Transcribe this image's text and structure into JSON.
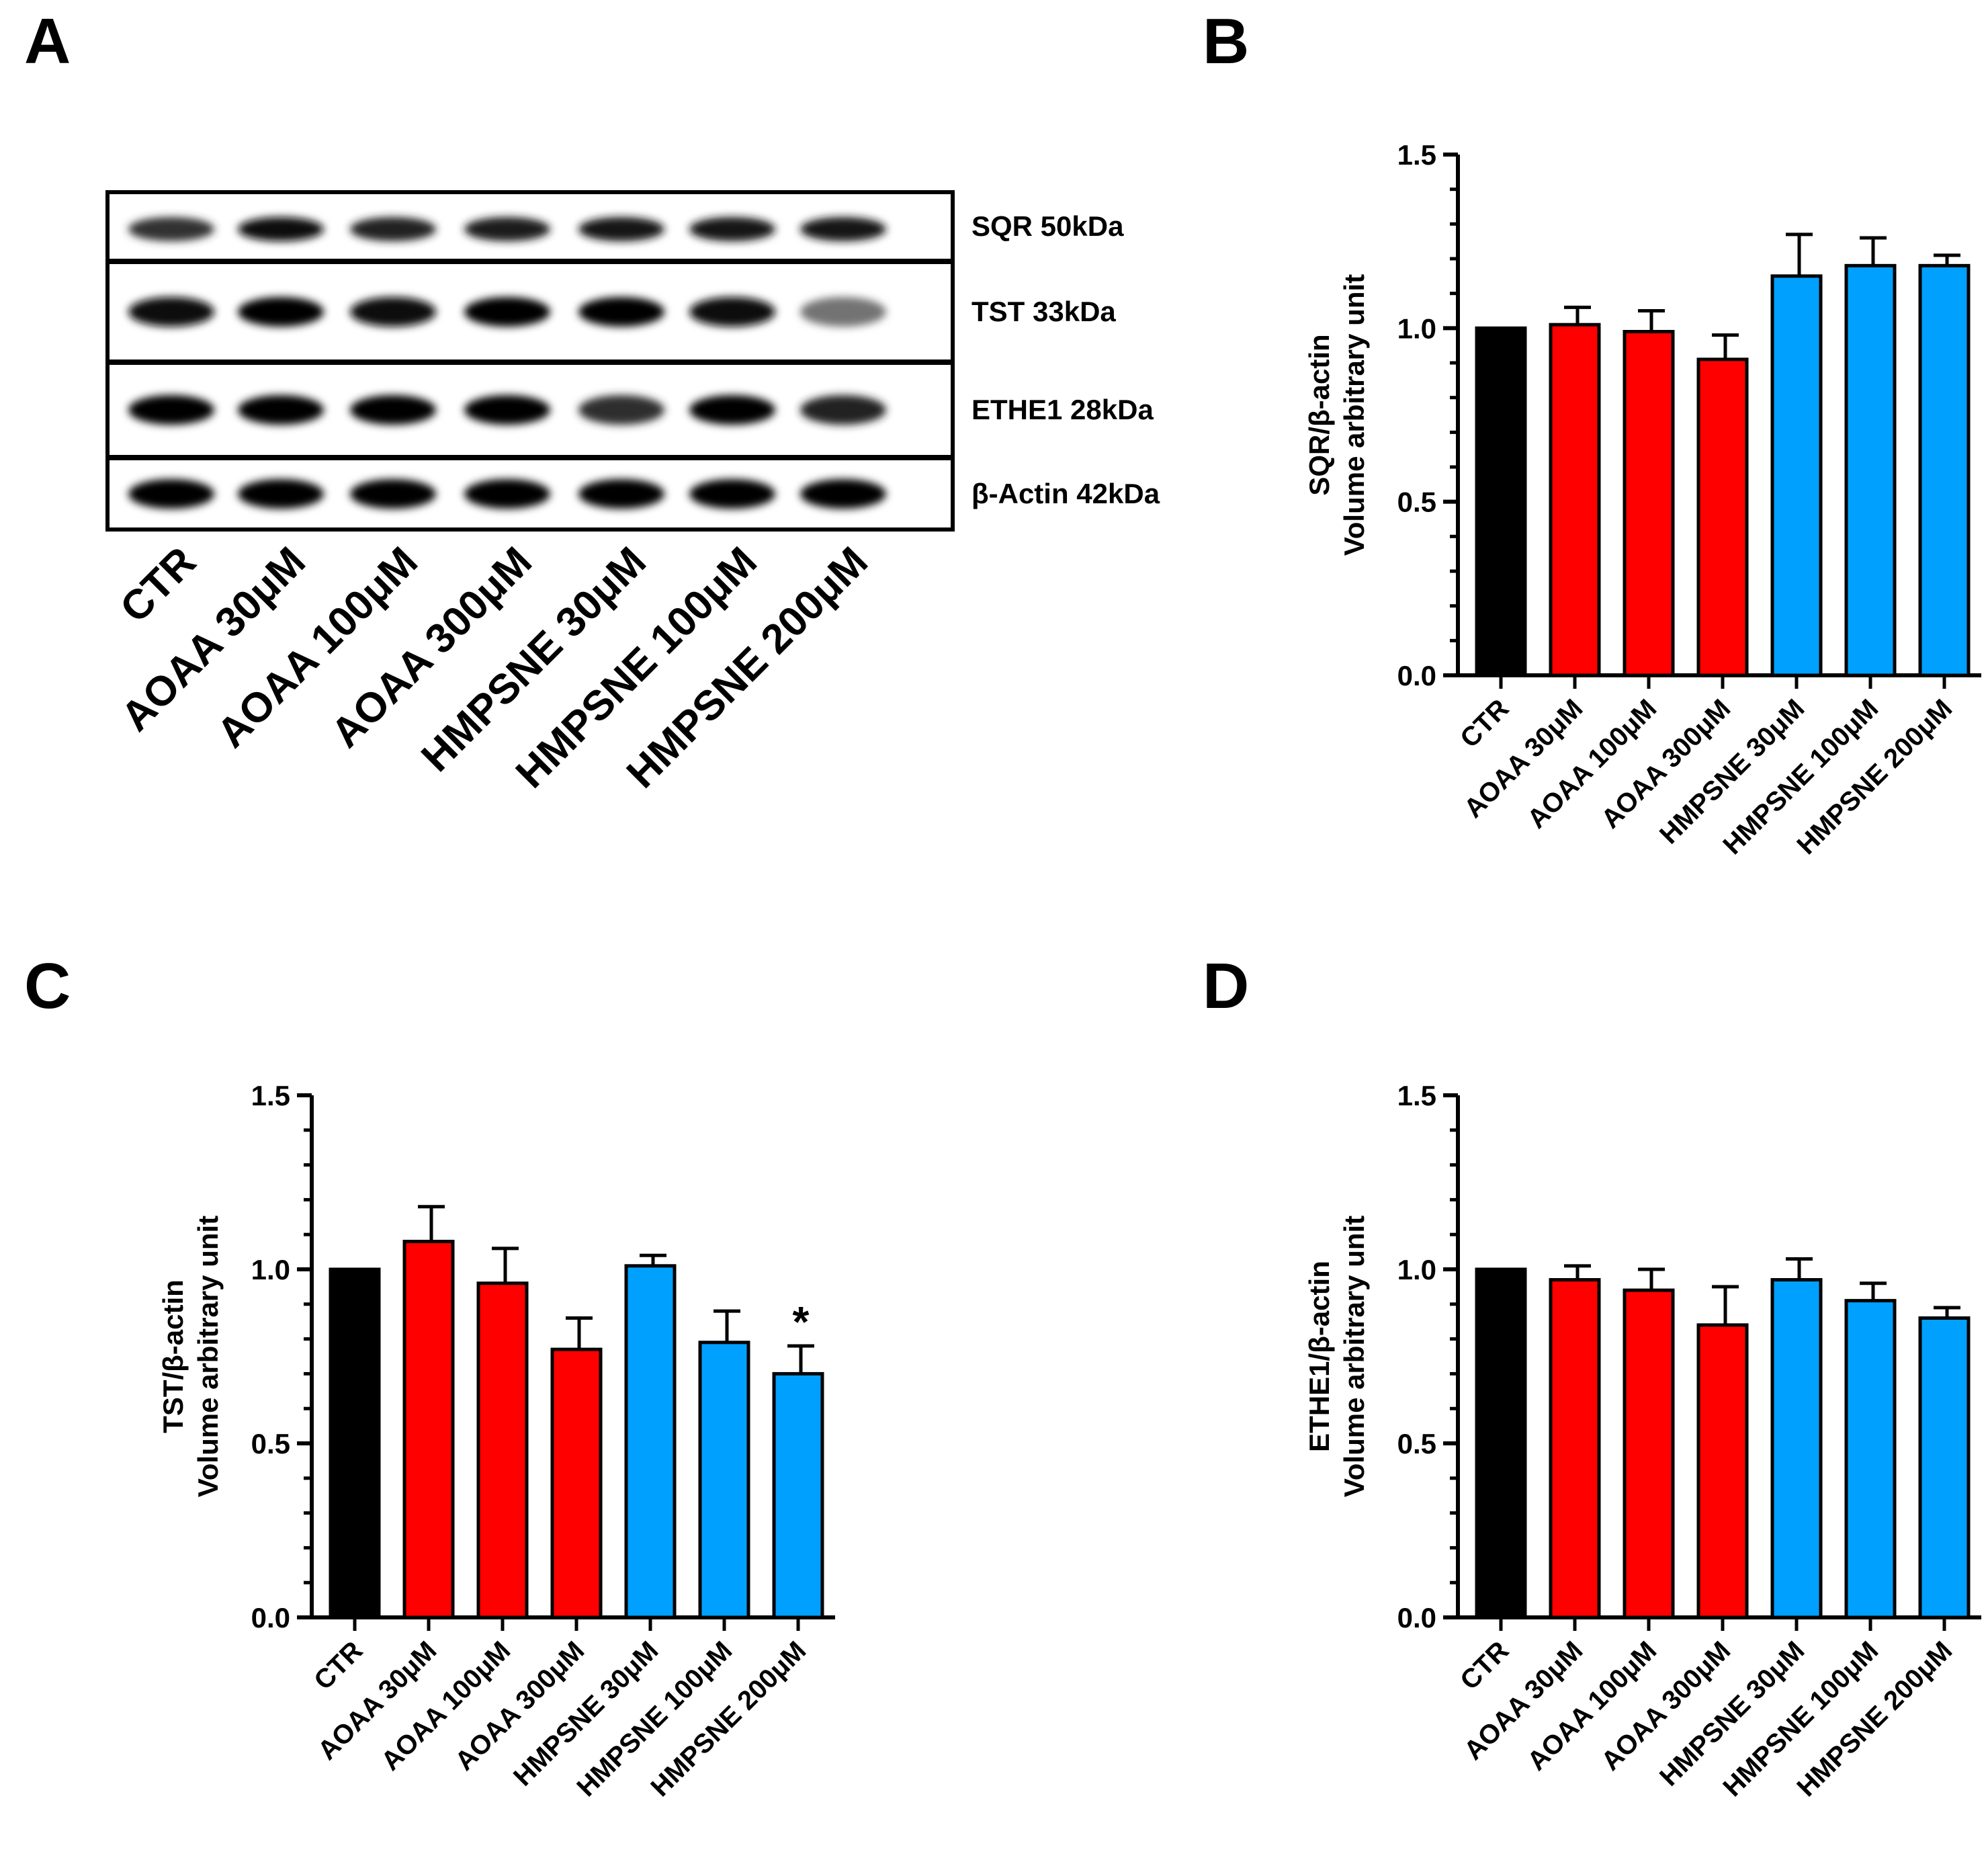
{
  "panel_letters": {
    "a": "A",
    "b": "B",
    "c": "C",
    "d": "D"
  },
  "blot": {
    "strips": [
      {
        "label": "SQR 50kDa",
        "intensity": [
          0.78,
          0.95,
          0.85,
          0.88,
          0.92,
          0.92,
          0.9
        ]
      },
      {
        "label": "TST 33kDa",
        "intensity": [
          0.95,
          1.0,
          0.95,
          1.0,
          1.0,
          0.95,
          0.5
        ]
      },
      {
        "label": "ETHE1 28kDa",
        "intensity": [
          1.0,
          1.0,
          1.0,
          1.0,
          0.8,
          1.0,
          0.85
        ]
      },
      {
        "label": "β-Actin 42kDa",
        "intensity": [
          1.0,
          1.0,
          1.0,
          1.0,
          1.0,
          1.0,
          1.0
        ]
      }
    ],
    "lanes": [
      "CTR",
      "AOAA 30μM",
      "AOAA 100μM",
      "AOAA 300μM",
      "HMPSNE 30μM",
      "HMPSNE 100μM",
      "HMPSNE 200μM"
    ]
  },
  "colors": {
    "ctr": "#000000",
    "aoaa": "#ff0000",
    "hmpsne": "#00a0ff"
  },
  "chart_data": [
    {
      "panel": "B",
      "type": "bar",
      "categories": [
        "CTR",
        "AOAA 30μM",
        "AOAA 100μM",
        "AOAA 300μM",
        "HMPSNE 30μM",
        "HMPSNE 100μM",
        "HMPSNE 200μM"
      ],
      "values": [
        1.0,
        1.01,
        0.99,
        0.91,
        1.15,
        1.18,
        1.18
      ],
      "errors": [
        0.0,
        0.05,
        0.06,
        0.07,
        0.12,
        0.08,
        0.03
      ],
      "bar_colors": [
        "#000000",
        "#ff0000",
        "#ff0000",
        "#ff0000",
        "#00a0ff",
        "#00a0ff",
        "#00a0ff"
      ],
      "ylabel_line1": "SQR/β-actin",
      "ylabel_line2": "Volume arbitrary unit",
      "ylim": [
        0,
        1.5
      ],
      "yticks": [
        "0.0",
        "0.5",
        "1.0",
        "1.5"
      ],
      "annotations": []
    },
    {
      "panel": "C",
      "type": "bar",
      "categories": [
        "CTR",
        "AOAA 30μM",
        "AOAA 100μM",
        "AOAA 300μM",
        "HMPSNE 30μM",
        "HMPSNE 100μM",
        "HMPSNE 200μM"
      ],
      "values": [
        1.0,
        1.08,
        0.96,
        0.77,
        1.01,
        0.79,
        0.7
      ],
      "errors": [
        0.0,
        0.1,
        0.1,
        0.09,
        0.03,
        0.09,
        0.08
      ],
      "bar_colors": [
        "#000000",
        "#ff0000",
        "#ff0000",
        "#ff0000",
        "#00a0ff",
        "#00a0ff",
        "#00a0ff"
      ],
      "ylabel_line1": "TST/β-actin",
      "ylabel_line2": "Volume arbitrary unit",
      "ylim": [
        0,
        1.5
      ],
      "yticks": [
        "0.0",
        "0.5",
        "1.0",
        "1.5"
      ],
      "annotations": [
        {
          "category": "HMPSNE 200μM",
          "text": "*"
        }
      ]
    },
    {
      "panel": "D",
      "type": "bar",
      "categories": [
        "CTR",
        "AOAA 30μM",
        "AOAA 100μM",
        "AOAA 300μM",
        "HMPSNE 30μM",
        "HMPSNE 100μM",
        "HMPSNE 200μM"
      ],
      "values": [
        1.0,
        0.97,
        0.94,
        0.84,
        0.97,
        0.91,
        0.86
      ],
      "errors": [
        0.0,
        0.04,
        0.06,
        0.11,
        0.06,
        0.05,
        0.03
      ],
      "bar_colors": [
        "#000000",
        "#ff0000",
        "#ff0000",
        "#ff0000",
        "#00a0ff",
        "#00a0ff",
        "#00a0ff"
      ],
      "ylabel_line1": "ETHE1/β-actin",
      "ylabel_line2": "Volume arbitrary unit",
      "ylim": [
        0,
        1.5
      ],
      "yticks": [
        "0.0",
        "0.5",
        "1.0",
        "1.5"
      ],
      "annotations": []
    }
  ]
}
